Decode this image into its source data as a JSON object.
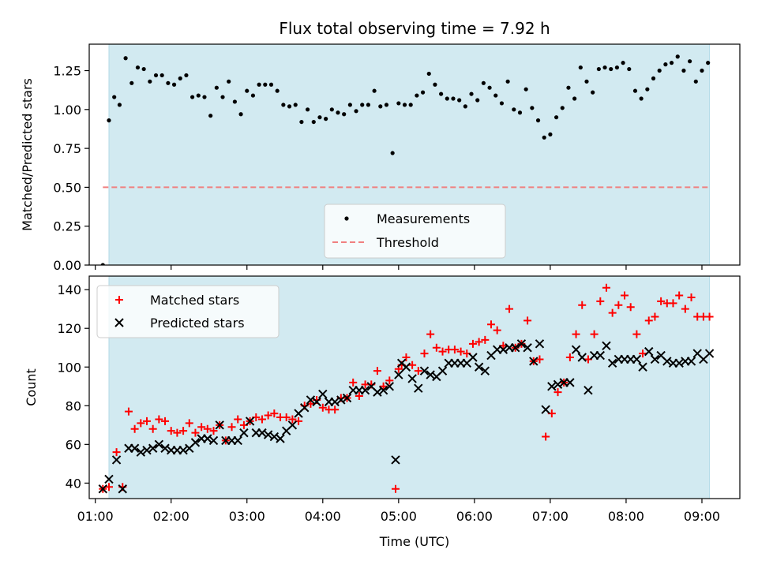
{
  "title": "Flux total observing time = 7.92 h",
  "colors": {
    "background": "#ffffff",
    "span": "#add8e6",
    "measurement": "#000000",
    "threshold": "#f08080",
    "matched": "#ff0000",
    "predicted": "#000000"
  },
  "chart_data": [
    {
      "type": "scatter",
      "ylabel": "Matched/Predicted stars",
      "xlabel": "",
      "xlim": [
        0.92,
        9.5
      ],
      "ylim": [
        0,
        1.42
      ],
      "yticks": [
        0.0,
        0.25,
        0.5,
        0.75,
        1.0,
        1.25
      ],
      "ytick_labels": [
        "0.00",
        "0.25",
        "0.50",
        "0.75",
        "1.00",
        "1.25"
      ],
      "xticks": [
        1,
        2,
        3,
        4,
        5,
        6,
        7,
        8,
        9
      ],
      "observing_span": [
        1.18,
        9.1
      ],
      "legend": {
        "position": "lower-center",
        "entries": [
          "Measurements",
          "Threshold"
        ]
      },
      "threshold": {
        "name": "Threshold",
        "y": 0.5,
        "x": [
          1.1,
          9.1
        ]
      },
      "series": [
        {
          "name": "Measurements",
          "x": [
            1.1,
            1.18,
            1.25,
            1.32,
            1.4,
            1.48,
            1.56,
            1.64,
            1.72,
            1.8,
            1.88,
            1.96,
            2.04,
            2.12,
            2.2,
            2.28,
            2.36,
            2.44,
            2.52,
            2.6,
            2.68,
            2.76,
            2.84,
            2.92,
            3.0,
            3.08,
            3.16,
            3.24,
            3.32,
            3.4,
            3.48,
            3.56,
            3.64,
            3.72,
            3.8,
            3.88,
            3.96,
            4.04,
            4.12,
            4.2,
            4.28,
            4.36,
            4.44,
            4.52,
            4.6,
            4.68,
            4.76,
            4.84,
            4.92,
            5.0,
            5.08,
            5.16,
            5.24,
            5.32,
            5.4,
            5.48,
            5.56,
            5.64,
            5.72,
            5.8,
            5.88,
            5.96,
            6.04,
            6.12,
            6.2,
            6.28,
            6.36,
            6.44,
            6.52,
            6.6,
            6.68,
            6.76,
            6.84,
            6.92,
            7.0,
            7.08,
            7.16,
            7.24,
            7.32,
            7.4,
            7.48,
            7.56,
            7.64,
            7.72,
            7.8,
            7.88,
            7.96,
            8.04,
            8.12,
            8.2,
            8.28,
            8.36,
            8.44,
            8.52,
            8.6,
            8.68,
            8.76,
            8.84,
            8.92,
            9.0,
            9.08
          ],
          "y": [
            0.0,
            0.93,
            1.08,
            1.03,
            1.33,
            1.17,
            1.27,
            1.26,
            1.18,
            1.22,
            1.22,
            1.17,
            1.16,
            1.2,
            1.22,
            1.08,
            1.09,
            1.08,
            0.96,
            1.14,
            1.08,
            1.18,
            1.05,
            0.97,
            1.12,
            1.09,
            1.16,
            1.16,
            1.16,
            1.12,
            1.03,
            1.02,
            1.03,
            0.92,
            1.0,
            0.92,
            0.95,
            0.94,
            1.0,
            0.98,
            0.97,
            1.03,
            0.99,
            1.03,
            1.03,
            1.12,
            1.02,
            1.03,
            0.72,
            1.04,
            1.03,
            1.03,
            1.09,
            1.11,
            1.23,
            1.16,
            1.1,
            1.07,
            1.07,
            1.06,
            1.02,
            1.1,
            1.06,
            1.17,
            1.14,
            1.09,
            1.04,
            1.18,
            1.0,
            0.98,
            1.13,
            1.01,
            0.93,
            0.82,
            0.84,
            0.95,
            1.01,
            1.14,
            1.07,
            1.27,
            1.18,
            1.11,
            1.26,
            1.27,
            1.26,
            1.27,
            1.3,
            1.26,
            1.12,
            1.07,
            1.13,
            1.2,
            1.25,
            1.29,
            1.3,
            1.34,
            1.25,
            1.31,
            1.18,
            1.25,
            1.3
          ]
        }
      ]
    },
    {
      "type": "scatter",
      "ylabel": "Count",
      "xlabel": "Time (UTC)",
      "xlim": [
        0.92,
        9.5
      ],
      "ylim": [
        32,
        147
      ],
      "yticks": [
        40,
        60,
        80,
        100,
        120,
        140
      ],
      "ytick_labels": [
        "40",
        "60",
        "80",
        "100",
        "120",
        "140"
      ],
      "xticks": [
        1,
        2,
        3,
        4,
        5,
        6,
        7,
        8,
        9
      ],
      "xtick_labels": [
        "01:00",
        "02:00",
        "03:00",
        "04:00",
        "05:00",
        "06:00",
        "07:00",
        "08:00",
        "09:00"
      ],
      "observing_span": [
        1.18,
        9.1
      ],
      "legend": {
        "position": "upper-left",
        "entries": [
          "Matched stars",
          "Predicted stars"
        ]
      },
      "series": [
        {
          "name": "Matched stars",
          "x": [
            1.1,
            1.18,
            1.28,
            1.36,
            1.44,
            1.52,
            1.6,
            1.68,
            1.76,
            1.84,
            1.92,
            2.0,
            2.08,
            2.16,
            2.24,
            2.32,
            2.4,
            2.48,
            2.56,
            2.64,
            2.72,
            2.8,
            2.88,
            2.96,
            3.04,
            3.12,
            3.2,
            3.28,
            3.36,
            3.44,
            3.52,
            3.6,
            3.68,
            3.76,
            3.84,
            3.92,
            4.0,
            4.08,
            4.16,
            4.24,
            4.32,
            4.4,
            4.48,
            4.56,
            4.64,
            4.72,
            4.8,
            4.88,
            4.96,
            5.0,
            5.04,
            5.1,
            5.18,
            5.26,
            5.34,
            5.42,
            5.5,
            5.58,
            5.66,
            5.74,
            5.82,
            5.9,
            5.98,
            6.06,
            6.14,
            6.22,
            6.3,
            6.38,
            6.46,
            6.54,
            6.62,
            6.7,
            6.78,
            6.86,
            6.94,
            7.02,
            7.1,
            7.18,
            7.26,
            7.34,
            7.42,
            7.5,
            7.58,
            7.66,
            7.74,
            7.82,
            7.9,
            7.98,
            8.06,
            8.14,
            8.22,
            8.3,
            8.38,
            8.46,
            8.54,
            8.62,
            8.7,
            8.78,
            8.86,
            8.94,
            9.02,
            9.1
          ],
          "y": [
            37,
            38,
            56,
            38,
            77,
            68,
            71,
            72,
            68,
            73,
            72,
            67,
            66,
            67,
            71,
            66,
            69,
            68,
            67,
            70,
            62,
            69,
            73,
            70,
            72,
            74,
            73,
            75,
            76,
            74,
            74,
            73,
            72,
            80,
            81,
            83,
            79,
            78,
            78,
            84,
            84,
            92,
            85,
            91,
            91,
            98,
            90,
            93,
            37,
            99,
            101,
            105,
            101,
            98,
            107,
            117,
            110,
            108,
            109,
            109,
            108,
            107,
            112,
            113,
            114,
            122,
            119,
            111,
            130,
            110,
            112,
            124,
            103,
            104,
            64,
            76,
            87,
            92,
            105,
            117,
            132,
            104,
            117,
            134,
            141,
            128,
            132,
            137,
            131,
            117,
            107,
            124,
            126,
            134,
            133,
            133,
            137,
            130,
            136,
            126,
            126,
            126
          ]
        },
        {
          "name": "Predicted stars",
          "x": [
            1.1,
            1.18,
            1.28,
            1.36,
            1.44,
            1.52,
            1.6,
            1.68,
            1.76,
            1.84,
            1.92,
            2.0,
            2.08,
            2.16,
            2.24,
            2.32,
            2.4,
            2.48,
            2.56,
            2.64,
            2.72,
            2.8,
            2.88,
            2.96,
            3.04,
            3.12,
            3.2,
            3.28,
            3.36,
            3.44,
            3.52,
            3.6,
            3.68,
            3.76,
            3.84,
            3.92,
            4.0,
            4.08,
            4.16,
            4.24,
            4.32,
            4.4,
            4.48,
            4.56,
            4.64,
            4.72,
            4.8,
            4.88,
            4.96,
            5.0,
            5.04,
            5.1,
            5.18,
            5.26,
            5.34,
            5.42,
            5.5,
            5.58,
            5.66,
            5.74,
            5.82,
            5.9,
            5.98,
            6.06,
            6.14,
            6.22,
            6.3,
            6.38,
            6.46,
            6.54,
            6.62,
            6.7,
            6.78,
            6.86,
            6.94,
            7.02,
            7.1,
            7.18,
            7.26,
            7.34,
            7.42,
            7.5,
            7.58,
            7.66,
            7.74,
            7.82,
            7.9,
            7.98,
            8.06,
            8.14,
            8.22,
            8.3,
            8.38,
            8.46,
            8.54,
            8.62,
            8.7,
            8.78,
            8.86,
            8.94,
            9.02,
            9.1
          ],
          "y": [
            37,
            42,
            52,
            37,
            58,
            58,
            56,
            57,
            58,
            60,
            58,
            57,
            57,
            57,
            58,
            61,
            63,
            63,
            62,
            70,
            62,
            62,
            62,
            66,
            72,
            66,
            66,
            65,
            64,
            63,
            67,
            70,
            76,
            79,
            83,
            82,
            86,
            82,
            82,
            83,
            84,
            88,
            88,
            88,
            90,
            87,
            88,
            90,
            52,
            96,
            102,
            100,
            94,
            89,
            98,
            96,
            95,
            98,
            102,
            102,
            102,
            102,
            105,
            100,
            98,
            106,
            109,
            109,
            110,
            110,
            112,
            110,
            103,
            112,
            78,
            90,
            91,
            92,
            92,
            109,
            105,
            88,
            106,
            106,
            111,
            102,
            104,
            104,
            104,
            104,
            100,
            108,
            104,
            106,
            103,
            102,
            102,
            103,
            103,
            107,
            104,
            107
          ]
        }
      ]
    }
  ]
}
